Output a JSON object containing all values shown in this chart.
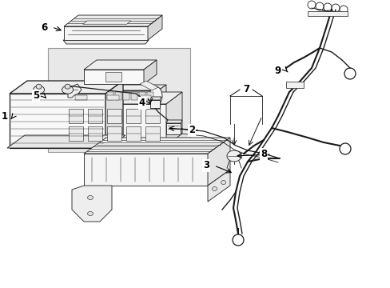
{
  "bg_color": "#ffffff",
  "fig_width": 4.89,
  "fig_height": 3.6,
  "dpi": 100,
  "lc": "#1a1a1a",
  "lc_light": "#555555",
  "face_white": "#ffffff",
  "face_light": "#f2f2f2",
  "face_mid": "#e0e0e0",
  "face_dark": "#cccccc",
  "box5_face": "#e8e8e8",
  "box5_edge": "#999999"
}
